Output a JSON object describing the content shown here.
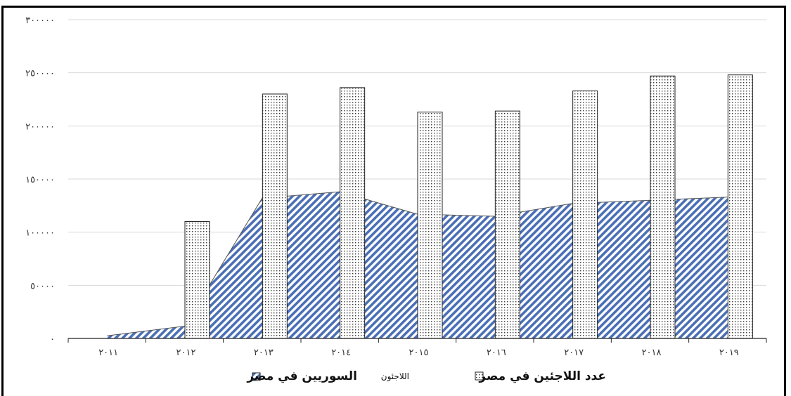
{
  "chart_data": {
    "type": "bar+area",
    "categories": [
      "٢٠١١",
      "٢٠١٢",
      "٢٠١٣",
      "٢٠١٤",
      "٢٠١٥",
      "٢٠١٦",
      "٢٠١٧",
      "٢٠١٨",
      "٢٠١٩"
    ],
    "ylim": [
      0,
      300000
    ],
    "yticks": [
      0,
      50000,
      100000,
      150000,
      200000,
      250000,
      300000
    ],
    "ytick_labels": [
      "٠",
      "٥٠٠٠٠",
      "١٠٠٠٠٠",
      "١٥٠٠٠٠",
      "٢٠٠٠٠٠",
      "٢٥٠٠٠٠",
      "٣٠٠٠٠٠"
    ],
    "grid": true,
    "legend_position": "bottom",
    "series": [
      {
        "kind": "bar",
        "pattern": "dots",
        "values": [
          null,
          110000,
          230000,
          236000,
          213000,
          214000,
          233000,
          247000,
          248000
        ]
      },
      {
        "kind": "area",
        "pattern": "diagonal-hatch",
        "color": "#4a6fb5",
        "values": [
          2500,
          11500,
          132000,
          138000,
          117000,
          115000,
          127000,
          130000,
          133000
        ]
      }
    ],
    "legend": [
      {
        "series": 0,
        "label": "عدد اللاجئين في مصر",
        "label_small": ""
      },
      {
        "series": 1,
        "label_small": "اللاجئون",
        "label": "السوريين في مصر"
      }
    ]
  }
}
